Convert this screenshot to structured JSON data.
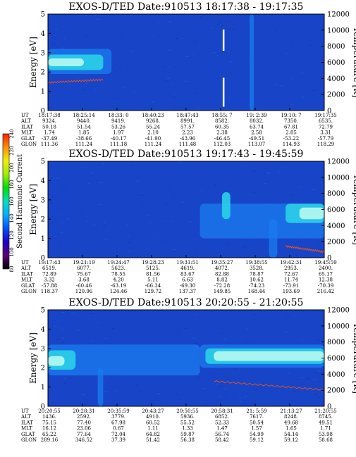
{
  "chart_data": [
    {
      "type": "heatmap",
      "title": "EXOS-D/TED   Date:910513   18:17:38 - 19:17:35",
      "ylabel": "Energy [eV]",
      "y2label": "Temperature [K]",
      "ylim": [
        0,
        5
      ],
      "y2lim": [
        0,
        12000
      ],
      "yticks": [
        "0",
        "1",
        "2",
        "3",
        "4",
        "5"
      ],
      "y2ticks": [
        "0",
        "2000",
        "4000",
        "6000",
        "8000",
        "10000",
        "12000"
      ],
      "colors": {
        "bg": "#1844c8",
        "band": "#2ad0e8",
        "core": "#b8f8f0",
        "mid": "#1a7cf0",
        "trace": "#e05020",
        "gap": "#ffffff"
      },
      "features": [
        {
          "x0": 0.0,
          "x1": 0.23,
          "y0": 1.9,
          "y1": 3.2,
          "level": "mid"
        },
        {
          "x0": 0.0,
          "x1": 0.2,
          "y0": 2.1,
          "y1": 2.9,
          "level": "band"
        },
        {
          "x0": 0.0,
          "x1": 0.13,
          "y0": 2.3,
          "y1": 2.7,
          "level": "core"
        },
        {
          "x0": 0.73,
          "x1": 0.745,
          "y0": 0.0,
          "y1": 5.0,
          "level": "mid"
        }
      ],
      "trace": {
        "x0": 0.0,
        "x1": 0.2,
        "y0": 1.45,
        "y1": 1.6
      },
      "gaps": [
        {
          "x": 0.635,
          "y0": 3.1,
          "y1": 4.2
        },
        {
          "x": 0.635,
          "y0": 0.2,
          "y1": 1.7
        }
      ],
      "table": {
        "labels": [
          "UT",
          "ALT",
          "ILAT",
          "MLT",
          "GLAT",
          "GLON"
        ],
        "columns": [
          [
            "18:17:38",
            "9324.",
            "50.18",
            "1.74",
            "-37.49",
            "111.36"
          ],
          [
            "18:25:14",
            "9440.",
            "51.54",
            "1.85",
            "-38.66",
            "111.24"
          ],
          [
            "18:33: 0",
            "9419.",
            "53.26",
            "1.97",
            "-40.17",
            "111.18"
          ],
          [
            "18:40:23",
            "9268.",
            "55.24",
            "2.10",
            "-41.90",
            "111.24"
          ],
          [
            "18:47:43",
            "8991.",
            "57.57",
            "2.23",
            "-43.96",
            "111.48"
          ],
          [
            "18:55: 7",
            "8582.",
            "60.35",
            "2.38",
            "-46.45",
            "112.03"
          ],
          [
            "19: 2:39",
            "8032.",
            "63.74",
            "2.58",
            "-49.51",
            "113.07"
          ],
          [
            "19:10: 7",
            "7350.",
            "67.81",
            "2.85",
            "-53.22",
            "114.93"
          ],
          [
            "19:17:35",
            "6535.",
            "72.79",
            "3.31",
            "-57.79",
            "118.29"
          ]
        ]
      }
    },
    {
      "type": "heatmap",
      "title": "EXOS-D/TED   Date:910513   19:17:43 - 19:45:59",
      "ylabel": "Energy [eV]",
      "y2label": "Temperature [K]",
      "ylim": [
        0,
        5
      ],
      "y2lim": [
        0,
        12000
      ],
      "yticks": [
        "0",
        "1",
        "2",
        "3",
        "4",
        "5"
      ],
      "y2ticks": [
        "0",
        "2000",
        "4000",
        "6000",
        "8000",
        "10000",
        "12000"
      ],
      "colors": {
        "bg": "#1844c8",
        "band": "#2ad0e8",
        "core": "#b8f8f0",
        "mid": "#1a7cf0",
        "trace": "#e05020",
        "gap": "#ffffff"
      },
      "features": [
        {
          "x0": 0.55,
          "x1": 1.0,
          "y0": 1.0,
          "y1": 2.8,
          "level": "mid"
        },
        {
          "x0": 0.63,
          "x1": 0.66,
          "y0": 2.0,
          "y1": 3.4,
          "level": "band"
        },
        {
          "x0": 0.86,
          "x1": 1.0,
          "y0": 1.8,
          "y1": 2.8,
          "level": "band"
        },
        {
          "x0": 0.91,
          "x1": 1.0,
          "y0": 2.0,
          "y1": 2.6,
          "level": "core"
        },
        {
          "x0": 0.8,
          "x1": 0.83,
          "y0": 0.0,
          "y1": 2.0,
          "level": "mid"
        }
      ],
      "trace": {
        "x0": 0.86,
        "x1": 1.0,
        "y0": 0.6,
        "y1": 0.3
      },
      "gaps": [],
      "table": {
        "labels": [
          "UT",
          "ALT",
          "ILAT",
          "MLT",
          "GLAT",
          "GLON"
        ],
        "columns": [
          [
            "19:17:43",
            "6519.",
            "72.89",
            "3.32",
            "-57.88",
            "118.37"
          ],
          [
            "19:21:19",
            "6077.",
            "75.67",
            "3.68",
            "-60.46",
            "120.96"
          ],
          [
            "19:24:47",
            "5623.",
            "78.55",
            "4.20",
            "-63.19",
            "124.46"
          ],
          [
            "19:28:23",
            "5125.",
            "81.56",
            "5.11",
            "-66.34",
            "129.72"
          ],
          [
            "19:31:51",
            "4619.",
            "83.67",
            "6.63",
            "-69.30",
            "137.37"
          ],
          [
            "19:35:27",
            "4072.",
            "82.88",
            "8.82",
            "-72.28",
            "149.85"
          ],
          [
            "19:38:55",
            "3528.",
            "78.87",
            "10.62",
            "-74.23",
            "168.44"
          ],
          [
            "19:42:31",
            "2953.",
            "72.67",
            "11.74",
            "-73.91",
            "193.69"
          ],
          [
            "19:45:59",
            "2400.",
            "65.17",
            "12.38",
            "-70.39",
            "216.42"
          ]
        ]
      }
    },
    {
      "type": "heatmap",
      "title": "EXOS-D/TED   Date:910513   20:20:55 - 21:20:55",
      "ylabel": "Energy [eV]",
      "y2label": "Temperature [K]",
      "ylim": [
        0,
        5
      ],
      "y2lim": [
        0,
        12000
      ],
      "yticks": [
        "0",
        "1",
        "2",
        "3",
        "4",
        "5"
      ],
      "y2ticks": [
        "0",
        "2000",
        "4000",
        "6000",
        "8000",
        "10000",
        "12000"
      ],
      "colors": {
        "bg": "#1844c8",
        "band": "#2ad0e8",
        "core": "#b8f8f0",
        "mid": "#1a7cf0",
        "trace": "#e05020",
        "gap": "#ffffff"
      },
      "features": [
        {
          "x0": 0.0,
          "x1": 0.55,
          "y0": 1.6,
          "y1": 3.2,
          "level": "mid"
        },
        {
          "x0": 0.0,
          "x1": 0.1,
          "y0": 1.9,
          "y1": 2.9,
          "level": "band"
        },
        {
          "x0": 0.0,
          "x1": 0.06,
          "y0": 2.1,
          "y1": 2.6,
          "level": "core"
        },
        {
          "x0": 0.55,
          "x1": 1.0,
          "y0": 2.0,
          "y1": 3.2,
          "level": "mid"
        },
        {
          "x0": 0.57,
          "x1": 1.0,
          "y0": 2.2,
          "y1": 3.0,
          "level": "band"
        },
        {
          "x0": 0.6,
          "x1": 1.0,
          "y0": 2.35,
          "y1": 2.85,
          "level": "core"
        },
        {
          "x0": 0.18,
          "x1": 0.2,
          "y0": 0.0,
          "y1": 2.0,
          "level": "mid"
        }
      ],
      "trace": {
        "x0": 0.6,
        "x1": 1.0,
        "y0": 1.3,
        "y1": 0.85
      },
      "gaps": [],
      "table": {
        "labels": [
          "UT",
          "ALT",
          "ILAT",
          "MLT",
          "GLAT",
          "GLON"
        ],
        "columns": [
          [
            "20:20:55",
            "1436.",
            "75.15",
            "16.12",
            "65.22",
            "289.16"
          ],
          [
            "20:28:31",
            "2592.",
            "77.40",
            "23.06",
            "77.64",
            "346.52"
          ],
          [
            "20:35:59",
            "3779.",
            "67.98",
            "0.67",
            "72.04",
            "37.39"
          ],
          [
            "20:43:27",
            "4910.",
            "60.52",
            "1.11",
            "64.82",
            "51.42"
          ],
          [
            "20:50:55",
            "5936.",
            "55.52",
            "1.33",
            "59.87",
            "56.38"
          ],
          [
            "20:58:31",
            "6852.",
            "52.33",
            "1.47",
            "56.74",
            "58.42"
          ],
          [
            "21: 5:59",
            "7617.",
            "50.54",
            "1.57",
            "54.99",
            "59.12"
          ],
          [
            "21:13:27",
            "8248.",
            "49.68",
            "1.65",
            "54.14",
            "59.12"
          ],
          [
            "21:20:55",
            "8745.",
            "49.51",
            "1.71",
            "53.98",
            "58.68"
          ]
        ]
      }
    }
  ],
  "colorbar": {
    "label": "Second Harmonic Current",
    "ticks": [
      "80",
      "100",
      "120",
      "140",
      "160",
      "180",
      "200",
      "220",
      "240"
    ],
    "stops": [
      "#000000",
      "#5a007a",
      "#2000c8",
      "#0050ff",
      "#00b0ff",
      "#00e0c0",
      "#00e000",
      "#a0f000",
      "#f0f000",
      "#ff9000",
      "#ff2000"
    ]
  }
}
